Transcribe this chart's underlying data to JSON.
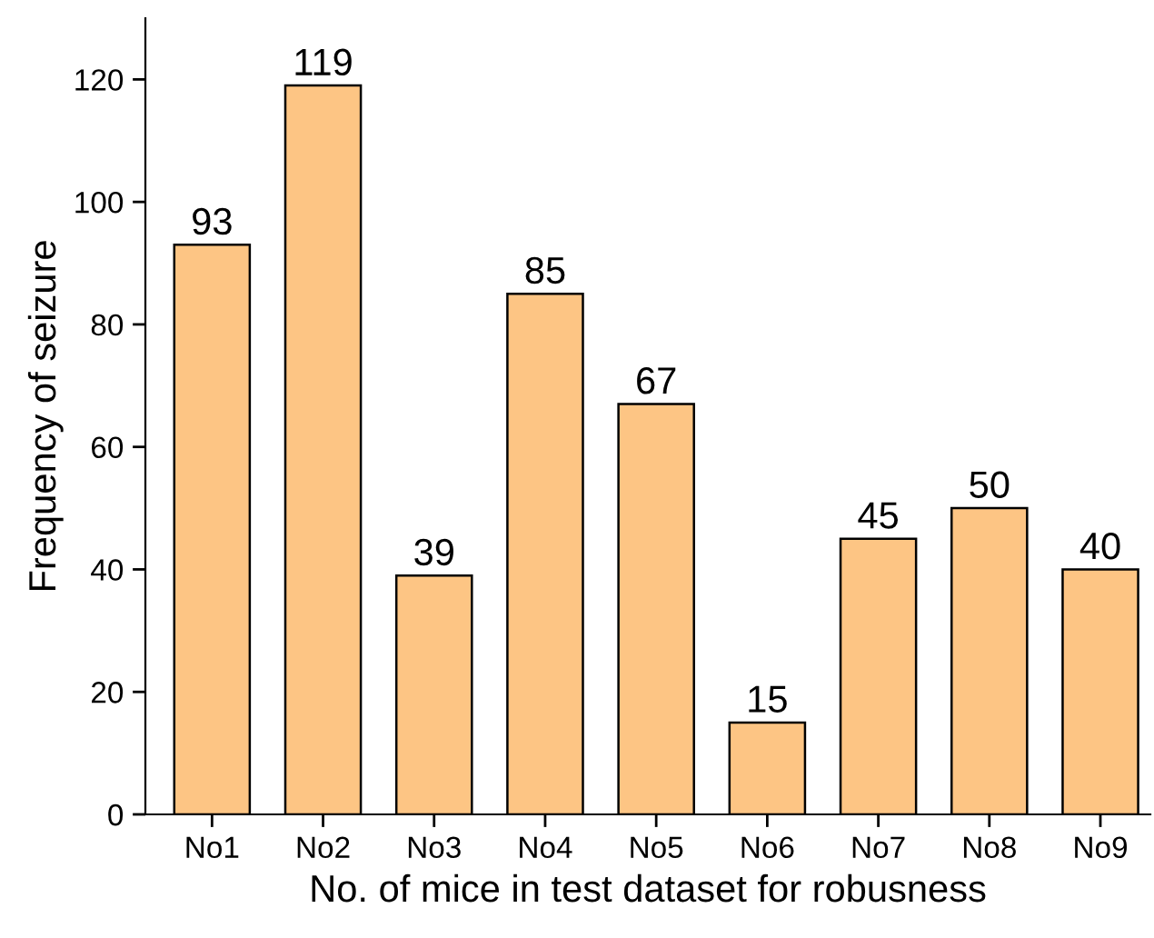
{
  "chart_data": {
    "type": "bar",
    "xlabel": "No. of mice in test dataset for robusness",
    "ylabel": "Frequency of seizure",
    "categories": [
      "No1",
      "No2",
      "No3",
      "No4",
      "No5",
      "No6",
      "No7",
      "No8",
      "No9"
    ],
    "values": [
      93,
      119,
      39,
      85,
      67,
      15,
      45,
      50,
      40
    ],
    "color": "#fdc584",
    "ylim": [
      0,
      130
    ],
    "yticks": [
      0,
      20,
      40,
      60,
      80,
      100,
      120
    ],
    "grid": false,
    "data_labels": true
  }
}
